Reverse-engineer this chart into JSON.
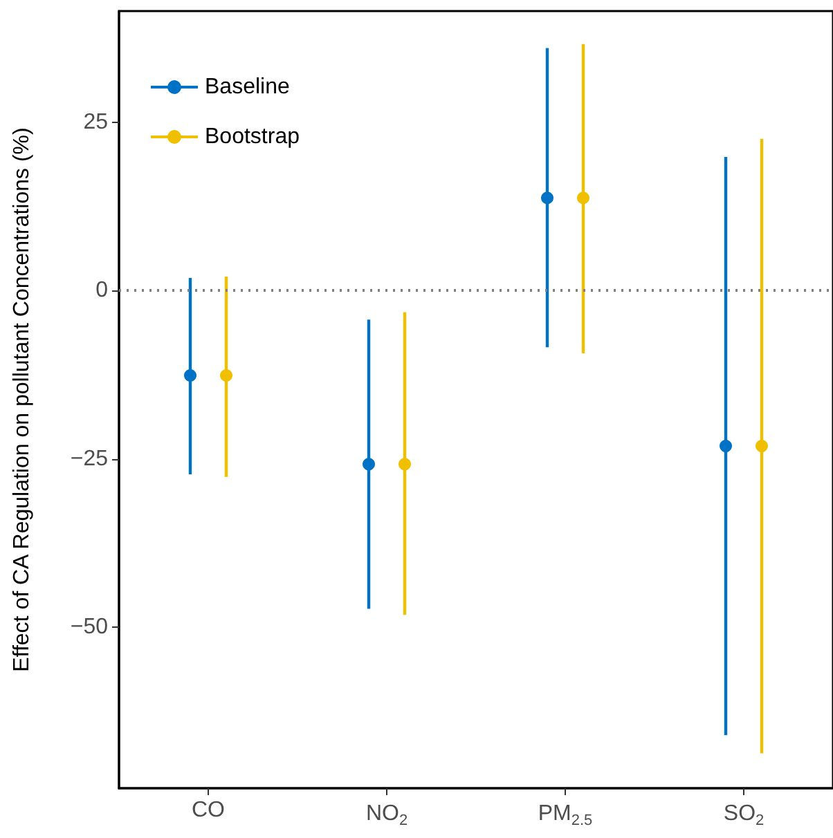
{
  "chart_data": {
    "type": "scatter",
    "ylabel": "Effect of CA Regulation on pollutant Concentrations (%)",
    "categories": [
      "CO",
      "NO$_{2}$",
      "PM$_{2.5}$",
      "SO$_{2}$"
    ],
    "series": [
      {
        "name": "Baseline",
        "color": "#0072c6",
        "values": [
          -12.6,
          -25.8,
          13.8,
          -23.1
        ],
        "errors": [
          [
            -27.3,
            1.9
          ],
          [
            -47.3,
            -4.3
          ],
          [
            -8.4,
            36.1
          ],
          [
            -66.1,
            19.9
          ]
        ]
      },
      {
        "name": "Bootstrap",
        "color": "#f0c000",
        "values": [
          -12.6,
          -25.8,
          13.8,
          -23.1
        ],
        "errors": [
          [
            -27.7,
            2.1
          ],
          [
            -48.2,
            -3.2
          ],
          [
            -9.3,
            36.7
          ],
          [
            -68.8,
            22.6
          ]
        ]
      }
    ],
    "ylim": [
      -74,
      41.6
    ],
    "yticks": [
      -50,
      -25,
      0,
      25
    ],
    "ref_lines": [
      {
        "axis": "y",
        "value": 0,
        "color": "#808080",
        "line_style": "dotted"
      }
    ],
    "marker": "circle",
    "grid": false,
    "legend": "top left"
  }
}
